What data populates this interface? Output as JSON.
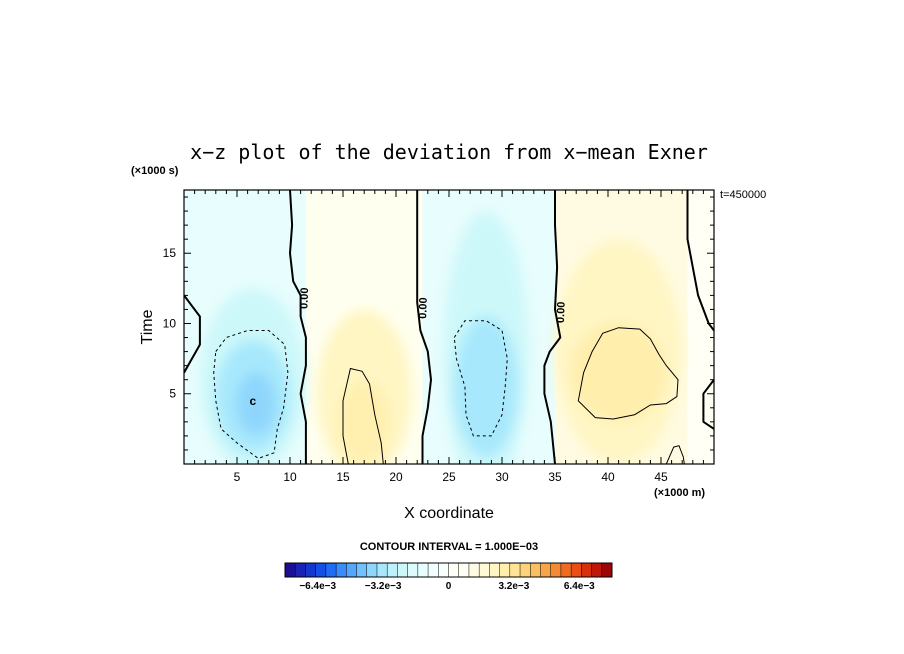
{
  "chart_data": {
    "type": "contour",
    "title": "x−z plot of the deviation from x−mean Exner",
    "xlabel": "X coordinate",
    "ylabel": "Time",
    "x_unit": "(×1000 m)",
    "y_unit": "(×1000 s)",
    "time_label": "t=450000",
    "xlim": [
      0,
      50
    ],
    "ylim": [
      0,
      19.5
    ],
    "x_ticks": [
      "5",
      "10",
      "15",
      "20",
      "25",
      "30",
      "35",
      "40",
      "45"
    ],
    "y_ticks": [
      "5",
      "10",
      "15"
    ],
    "contour_interval_text": "CONTOUR INTERVAL = 1.000E−03",
    "contour_labels": [
      "0.00",
      "0.00",
      "0.00"
    ],
    "min_marker": "c",
    "features": [
      {
        "sign": "negative",
        "x_center": 6.5,
        "y_center": 4.5,
        "min": -0.0015
      },
      {
        "sign": "positive",
        "x_center": 17,
        "y_center": 3,
        "max": 0.001
      },
      {
        "sign": "negative",
        "x_center": 28.5,
        "y_center": 5,
        "min": -0.0012
      },
      {
        "sign": "positive",
        "x_center": 41,
        "y_center": 6.5,
        "max": 0.0013
      }
    ],
    "colorbar": {
      "min": -0.008,
      "max": 0.008,
      "tick_labels": [
        "−6.4e−3",
        "−3.2e−3",
        "0",
        "3.2e−3",
        "6.4e−3"
      ],
      "tick_values": [
        -0.0064,
        -0.0032,
        0,
        0.0032,
        0.0064
      ],
      "colors": [
        "#1c0f94",
        "#1a23b4",
        "#1637cf",
        "#1550e6",
        "#1f6cf5",
        "#3a8bfb",
        "#56a6fd",
        "#72c0fd",
        "#8fd6fd",
        "#a7e8fc",
        "#bcf3fb",
        "#cdf8fa",
        "#dcfbfb",
        "#e8fdfd",
        "#f2fefe",
        "#fafffe",
        "#fffffa",
        "#fffef2",
        "#fffce6",
        "#fffad6",
        "#fff6c4",
        "#ffeeac",
        "#fee494",
        "#fcd37a",
        "#f9bf60",
        "#f6a648",
        "#f48a33",
        "#f06b22",
        "#e84e16",
        "#d8300d",
        "#c01708",
        "#9c0606"
      ]
    }
  }
}
